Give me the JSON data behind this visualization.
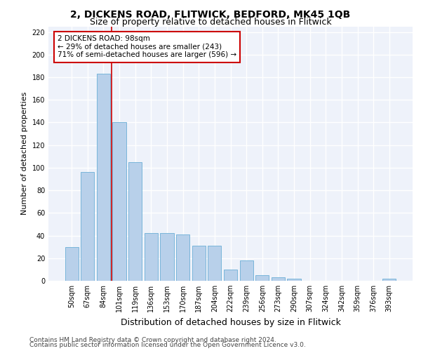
{
  "title1": "2, DICKENS ROAD, FLITWICK, BEDFORD, MK45 1QB",
  "title2": "Size of property relative to detached houses in Flitwick",
  "xlabel": "Distribution of detached houses by size in Flitwick",
  "ylabel": "Number of detached properties",
  "categories": [
    "50sqm",
    "67sqm",
    "84sqm",
    "101sqm",
    "119sqm",
    "136sqm",
    "153sqm",
    "170sqm",
    "187sqm",
    "204sqm",
    "222sqm",
    "239sqm",
    "256sqm",
    "273sqm",
    "290sqm",
    "307sqm",
    "324sqm",
    "342sqm",
    "359sqm",
    "376sqm",
    "393sqm"
  ],
  "values": [
    30,
    96,
    183,
    140,
    105,
    42,
    42,
    41,
    31,
    31,
    10,
    18,
    5,
    3,
    2,
    0,
    0,
    0,
    0,
    0,
    2
  ],
  "bar_color": "#b8d0ea",
  "bar_edge_color": "#6aaed6",
  "red_line_x": 2.5,
  "annotation_text": "2 DICKENS ROAD: 98sqm\n← 29% of detached houses are smaller (243)\n71% of semi-detached houses are larger (596) →",
  "annotation_box_color": "#ffffff",
  "annotation_box_edge_color": "#cc0000",
  "ylim": [
    0,
    225
  ],
  "yticks": [
    0,
    20,
    40,
    60,
    80,
    100,
    120,
    140,
    160,
    180,
    200,
    220
  ],
  "footer1": "Contains HM Land Registry data © Crown copyright and database right 2024.",
  "footer2": "Contains public sector information licensed under the Open Government Licence v3.0.",
  "background_color": "#eef2fa",
  "grid_color": "#ffffff",
  "title1_fontsize": 10,
  "title2_fontsize": 9,
  "xlabel_fontsize": 9,
  "ylabel_fontsize": 8,
  "tick_fontsize": 7,
  "annotation_fontsize": 7.5,
  "footer_fontsize": 6.5
}
